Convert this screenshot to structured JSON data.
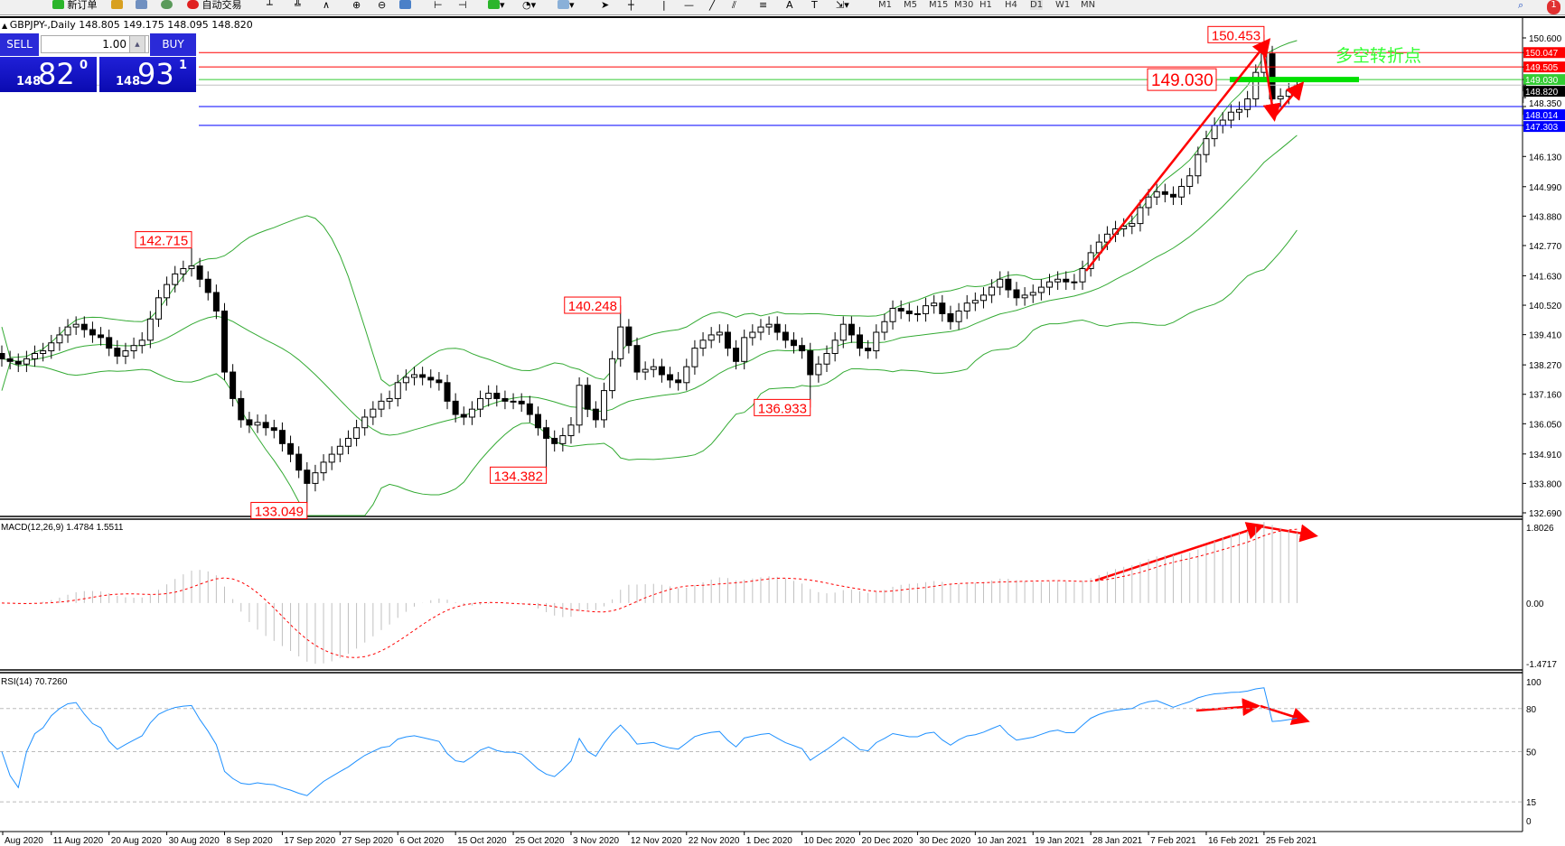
{
  "toolbar": {
    "new_order": "新订单",
    "auto_trading": "自动交易",
    "timeframes": [
      "M1",
      "M5",
      "M15",
      "M30",
      "H1",
      "H4",
      "D1",
      "W1",
      "MN"
    ],
    "active_timeframe": "D1",
    "notification_count": "1"
  },
  "chart": {
    "header": "GBPJPY-,Daily  148.805 149.175 148.095 148.820"
  },
  "trade_panel": {
    "sell_label": "SELL",
    "buy_label": "BUY",
    "lot": "1.00",
    "sell_small": "148",
    "sell_big": "82",
    "sell_sup": "0",
    "buy_small": "148",
    "buy_big": "93",
    "buy_sup": "1"
  },
  "chart_data": {
    "type": "candlestick",
    "symbol": "GBPJPY-",
    "period": "Daily",
    "ylim": [
      132.69,
      150.6
    ],
    "price_ticks": [
      "150.600",
      "148.350",
      "146.130",
      "144.990",
      "143.880",
      "142.770",
      "141.630",
      "140.520",
      "139.410",
      "138.270",
      "137.160",
      "136.050",
      "134.910",
      "133.800",
      "132.690"
    ],
    "date_labels": [
      {
        "bar": -1,
        "text": "Aug 2020"
      },
      {
        "bar": 6,
        "text": "11 Aug 2020"
      },
      {
        "bar": 13,
        "text": "20 Aug 2020"
      },
      {
        "bar": 20,
        "text": "30 Aug 2020"
      },
      {
        "bar": 27,
        "text": "8 Sep 2020"
      },
      {
        "bar": 34,
        "text": "17 Sep 2020"
      },
      {
        "bar": 41,
        "text": "27 Sep 2020"
      },
      {
        "bar": 48,
        "text": "6 Oct 2020"
      },
      {
        "bar": 55,
        "text": "15 Oct 2020"
      },
      {
        "bar": 62,
        "text": "25 Oct 2020"
      },
      {
        "bar": 69,
        "text": "3 Nov 2020"
      },
      {
        "bar": 76,
        "text": "12 Nov 2020"
      },
      {
        "bar": 83,
        "text": "22 Nov 2020"
      },
      {
        "bar": 90,
        "text": "1 Dec 2020"
      },
      {
        "bar": 97,
        "text": "10 Dec 2020"
      },
      {
        "bar": 104,
        "text": "20 Dec 2020"
      },
      {
        "bar": 111,
        "text": "30 Dec 2020"
      },
      {
        "bar": 118,
        "text": "10 Jan 2021"
      },
      {
        "bar": 125,
        "text": "19 Jan 2021"
      },
      {
        "bar": 132,
        "text": "28 Jan 2021"
      },
      {
        "bar": 139,
        "text": "7 Feb 2021"
      },
      {
        "bar": 146,
        "text": "16 Feb 2021"
      },
      {
        "bar": 153,
        "text": "25 Feb 2021"
      }
    ],
    "close": [
      138.5,
      138.4,
      138.3,
      138.5,
      138.7,
      138.8,
      139.1,
      139.4,
      139.7,
      139.8,
      139.6,
      139.4,
      139.3,
      138.9,
      138.6,
      138.8,
      139.0,
      139.2,
      140.0,
      140.8,
      141.3,
      141.7,
      141.9,
      142.0,
      141.5,
      141.0,
      140.3,
      138.0,
      137.0,
      136.2,
      136.0,
      136.1,
      135.9,
      135.8,
      135.3,
      134.9,
      134.3,
      133.8,
      134.2,
      134.6,
      134.9,
      135.2,
      135.5,
      135.9,
      136.3,
      136.6,
      136.9,
      137.0,
      137.6,
      137.8,
      137.9,
      137.8,
      137.7,
      137.6,
      136.9,
      136.4,
      136.3,
      136.6,
      137.0,
      137.2,
      137.0,
      136.9,
      136.9,
      136.8,
      136.4,
      135.9,
      135.5,
      135.3,
      135.6,
      136.0,
      137.5,
      136.6,
      136.2,
      137.3,
      138.5,
      139.7,
      139.0,
      138.0,
      138.1,
      138.2,
      137.9,
      137.7,
      137.6,
      138.2,
      138.9,
      139.2,
      139.4,
      139.5,
      138.9,
      138.4,
      139.3,
      139.5,
      139.7,
      139.8,
      139.5,
      139.2,
      139.0,
      138.8,
      137.9,
      138.3,
      138.7,
      139.2,
      139.8,
      139.4,
      138.9,
      138.8,
      139.5,
      139.9,
      140.4,
      140.3,
      140.2,
      140.2,
      140.5,
      140.6,
      140.2,
      139.9,
      140.3,
      140.6,
      140.7,
      140.9,
      141.2,
      141.5,
      141.1,
      140.8,
      140.9,
      141.0,
      141.2,
      141.4,
      141.5,
      141.4,
      141.4,
      141.9,
      142.5,
      142.9,
      143.2,
      143.4,
      143.5,
      143.6,
      144.2,
      144.6,
      144.8,
      144.7,
      144.6,
      145.0,
      145.4,
      146.2,
      146.8,
      147.3,
      147.5,
      147.8,
      147.9,
      148.3,
      149.3,
      150.0,
      148.3,
      148.4,
      148.6,
      148.82
    ],
    "extreme_labels": [
      {
        "bar": 23,
        "price": 142.715,
        "kind": "high",
        "text": "142.715"
      },
      {
        "bar": 37,
        "price": 133.049,
        "kind": "low",
        "text": "133.049"
      },
      {
        "bar": 66,
        "price": 134.382,
        "kind": "low",
        "text": "134.382"
      },
      {
        "bar": 75,
        "price": 140.248,
        "kind": "high",
        "text": "140.248"
      },
      {
        "bar": 98,
        "price": 136.933,
        "kind": "low",
        "text": "136.933"
      },
      {
        "bar": 153,
        "price": 150.453,
        "kind": "high",
        "text": "150.453"
      }
    ],
    "hlines": [
      {
        "price": 150.047,
        "text": "150.047",
        "color": "#ff0000"
      },
      {
        "price": 149.505,
        "text": "149.505",
        "color": "#ff0000"
      },
      {
        "price": 149.03,
        "text": "149.030",
        "color": "#33cc33"
      },
      {
        "price": 148.82,
        "text": "148.820",
        "color": "#c0c0c0",
        "label_bg": "#000000"
      },
      {
        "price": 148.014,
        "text": "148.014",
        "color": "#0000ff"
      },
      {
        "price": 147.303,
        "text": "147.303",
        "color": "#0000ff"
      }
    ],
    "annotation_text": "多空转折点",
    "annotation_level": {
      "price": 149.03,
      "text": "149.030"
    },
    "bollinger": {
      "period": 20,
      "deviation": 2,
      "color": "#33aa33"
    },
    "macd": {
      "title": "MACD(12,26,9) 1.4784 1.5511",
      "fast": 12,
      "slow": 26,
      "signal": 9,
      "ylim": [
        -1.4717,
        1.8026
      ],
      "ticks": [
        "1.8026",
        "0.00",
        "-1.4717"
      ],
      "hist_color": "#c0c0c0",
      "signal_color": "#ff0000"
    },
    "rsi": {
      "title": "RSI(14) 70.7260",
      "period": 14,
      "levels": [
        80,
        50,
        15
      ],
      "ticks": [
        "100",
        "80",
        "50",
        "15",
        "0"
      ],
      "color": "#1e90ff"
    },
    "colors": {
      "up": "#ffffff",
      "down": "#000000",
      "arrow": "#ff0000",
      "annotation": "#33ff33"
    }
  }
}
